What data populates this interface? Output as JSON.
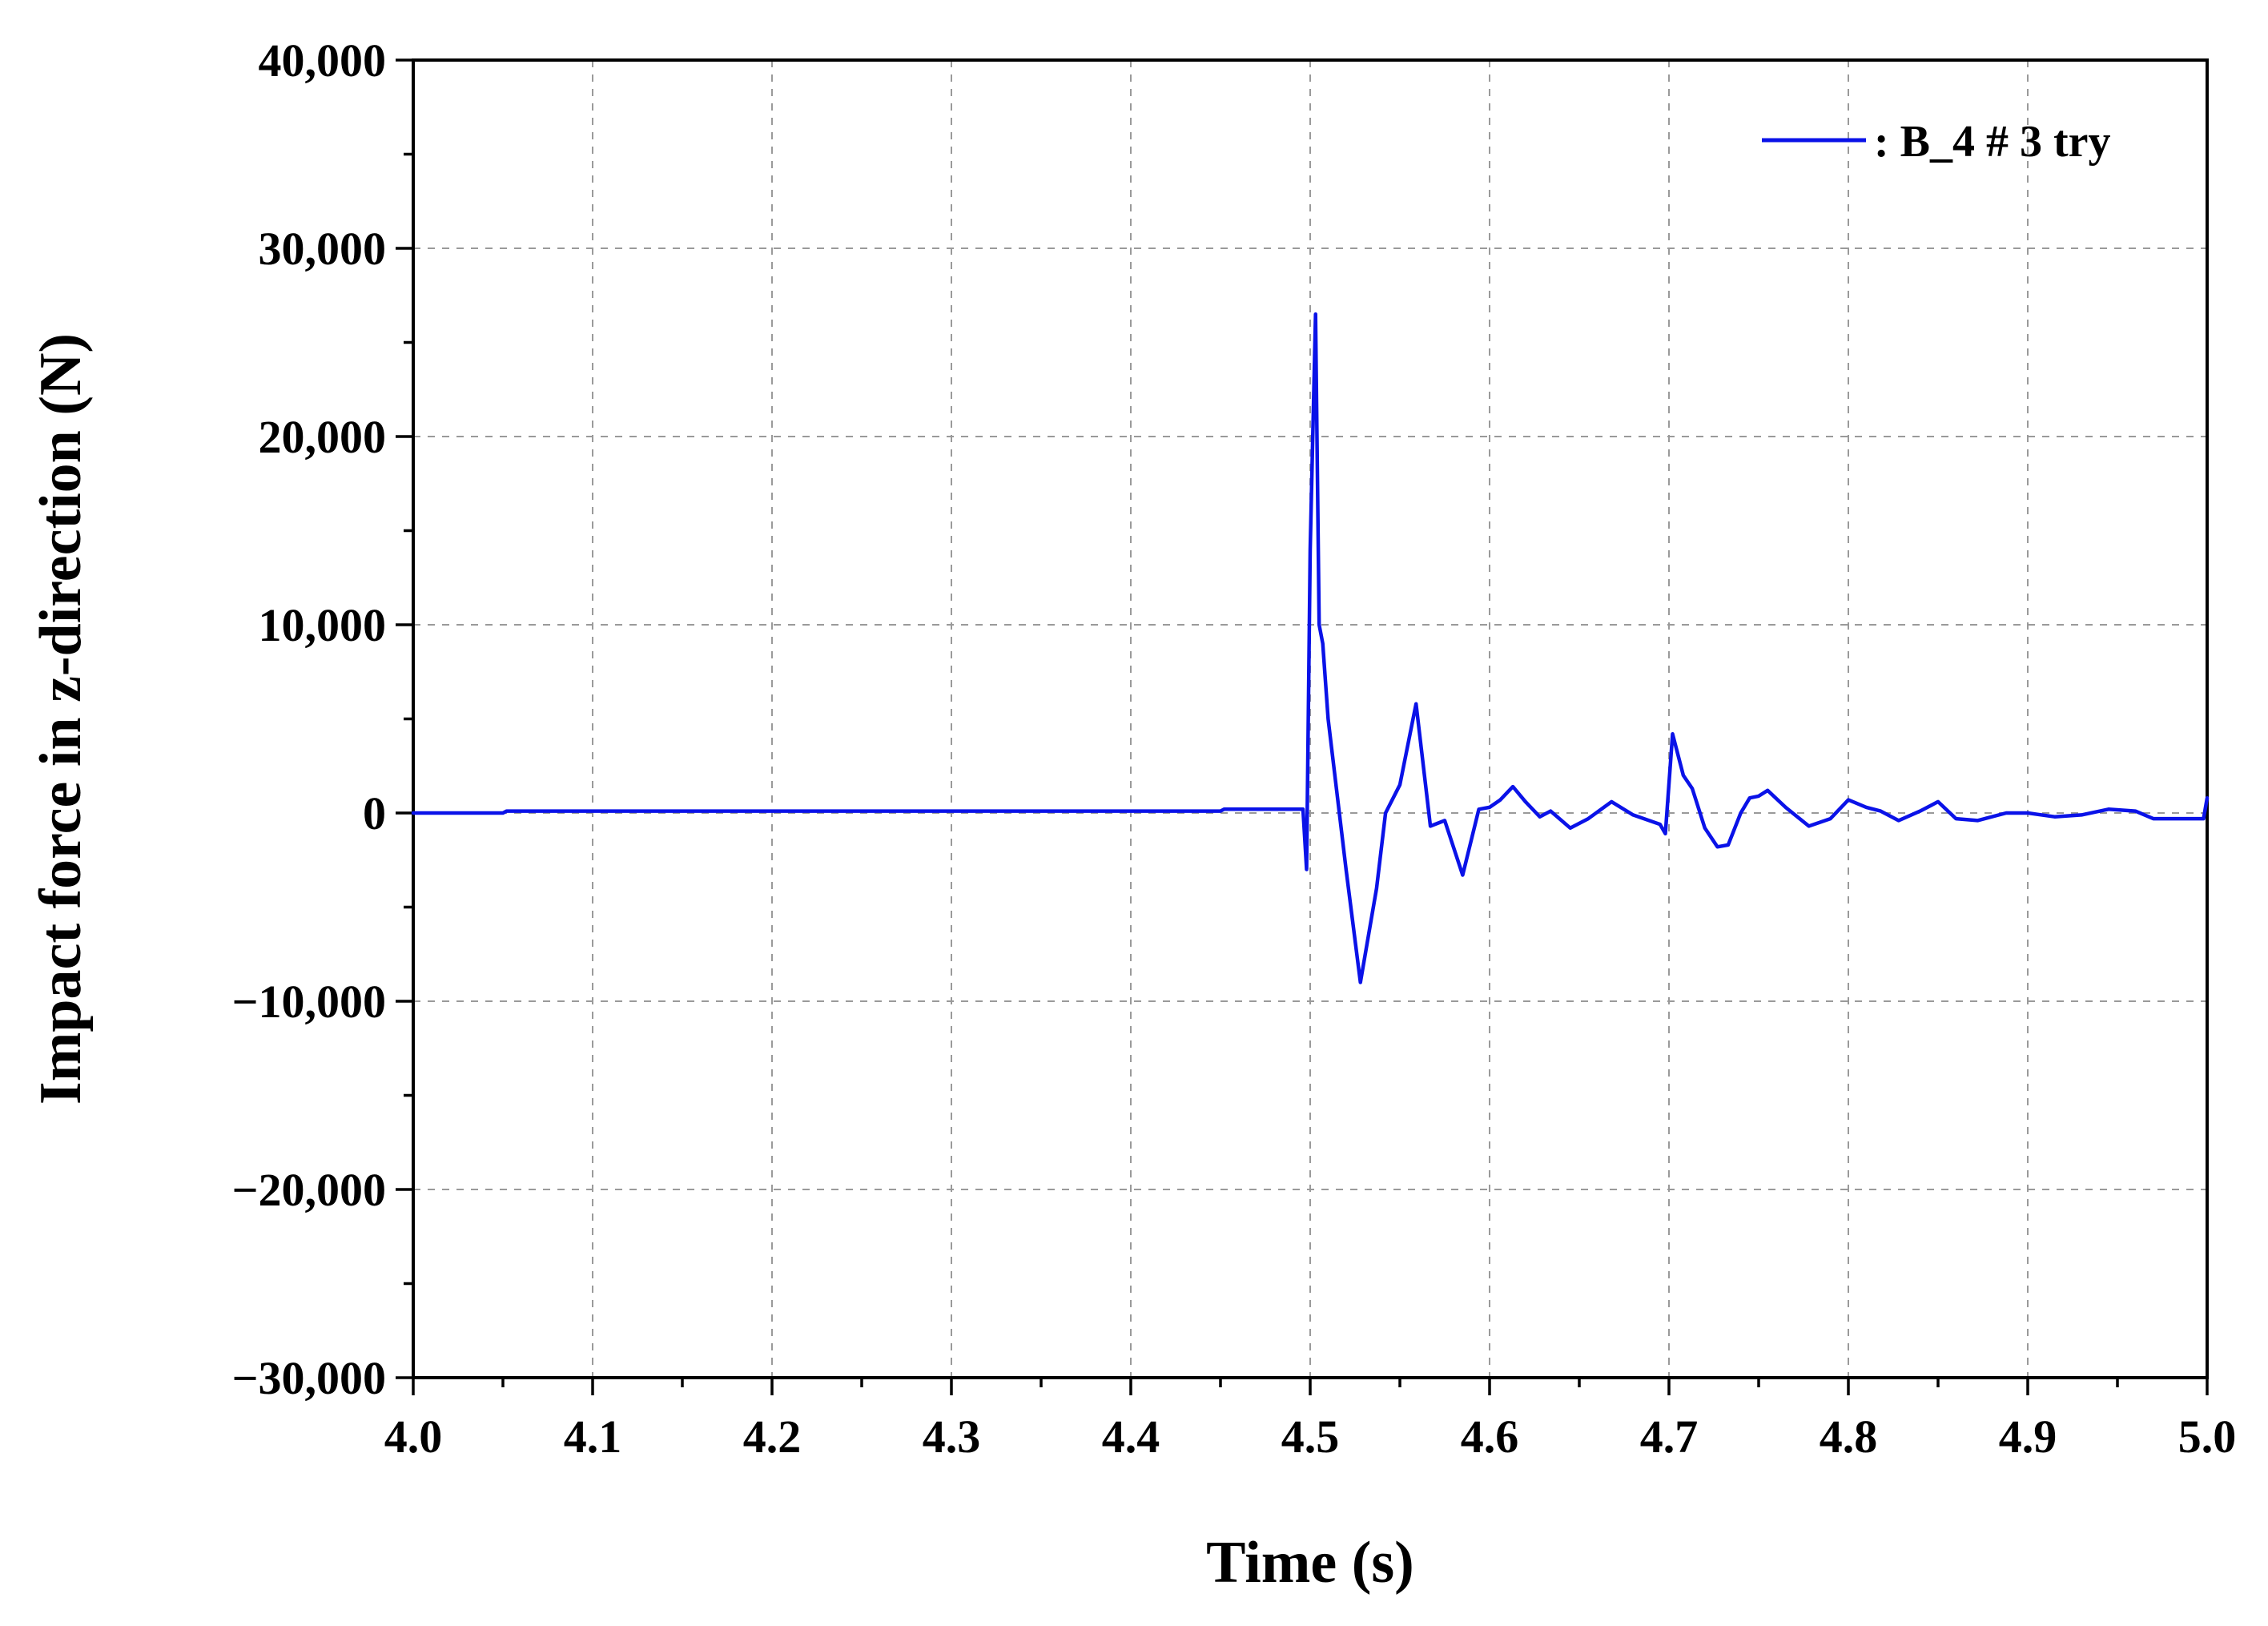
{
  "chart_data": {
    "type": "line",
    "title": "",
    "xlabel": "Time (s)",
    "ylabel": "Impact force in z-direction (N)",
    "xlim": [
      4.0,
      5.0
    ],
    "ylim": [
      -30000,
      40000
    ],
    "x_ticks": [
      4.0,
      4.1,
      4.2,
      4.3,
      4.4,
      4.5,
      4.6,
      4.7,
      4.8,
      4.9,
      5.0
    ],
    "x_tick_labels": [
      "4.0",
      "4.1",
      "4.2",
      "4.3",
      "4.4",
      "4.5",
      "4.6",
      "4.7",
      "4.8",
      "4.9",
      "5.0"
    ],
    "y_ticks": [
      -30000,
      -20000,
      -10000,
      0,
      10000,
      20000,
      30000,
      40000
    ],
    "y_tick_labels": [
      "−30,000",
      "−20,000",
      "−10,000",
      "0",
      "10,000",
      "20,000",
      "30,000",
      "40,000"
    ],
    "grid": true,
    "legend_position": "top-right",
    "series": [
      {
        "name": ": B_4 # 3 try",
        "color": "#0a12e8",
        "x": [
          4.0,
          4.05,
          4.052,
          4.45,
          4.452,
          4.496,
          4.498,
          4.5,
          4.503,
          4.505,
          4.507,
          4.51,
          4.52,
          4.528,
          4.537,
          4.542,
          4.55,
          4.559,
          4.567,
          4.575,
          4.585,
          4.594,
          4.6,
          4.606,
          4.613,
          4.62,
          4.628,
          4.634,
          4.645,
          4.655,
          4.668,
          4.68,
          4.695,
          4.698,
          4.702,
          4.708,
          4.713,
          4.72,
          4.727,
          4.733,
          4.74,
          4.745,
          4.75,
          4.755,
          4.765,
          4.778,
          4.79,
          4.8,
          4.81,
          4.818,
          4.828,
          4.84,
          4.85,
          4.86,
          4.872,
          4.888,
          4.9,
          4.915,
          4.93,
          4.945,
          4.96,
          4.97,
          4.998,
          5.0
        ],
        "y": [
          0,
          0,
          100,
          100,
          200,
          200,
          -3000,
          14000,
          26500,
          10000,
          9000,
          5000,
          -3000,
          -9000,
          -4000,
          0,
          1500,
          5800,
          -700,
          -400,
          -3300,
          200,
          300,
          700,
          1400,
          600,
          -200,
          100,
          -800,
          -300,
          600,
          -100,
          -600,
          -1100,
          4200,
          2000,
          1300,
          -800,
          -1800,
          -1700,
          0,
          800,
          900,
          1200,
          300,
          -700,
          -300,
          700,
          300,
          100,
          -400,
          100,
          600,
          -300,
          -400,
          0,
          0,
          -200,
          -100,
          200,
          100,
          -300,
          -300,
          800
        ]
      }
    ]
  }
}
